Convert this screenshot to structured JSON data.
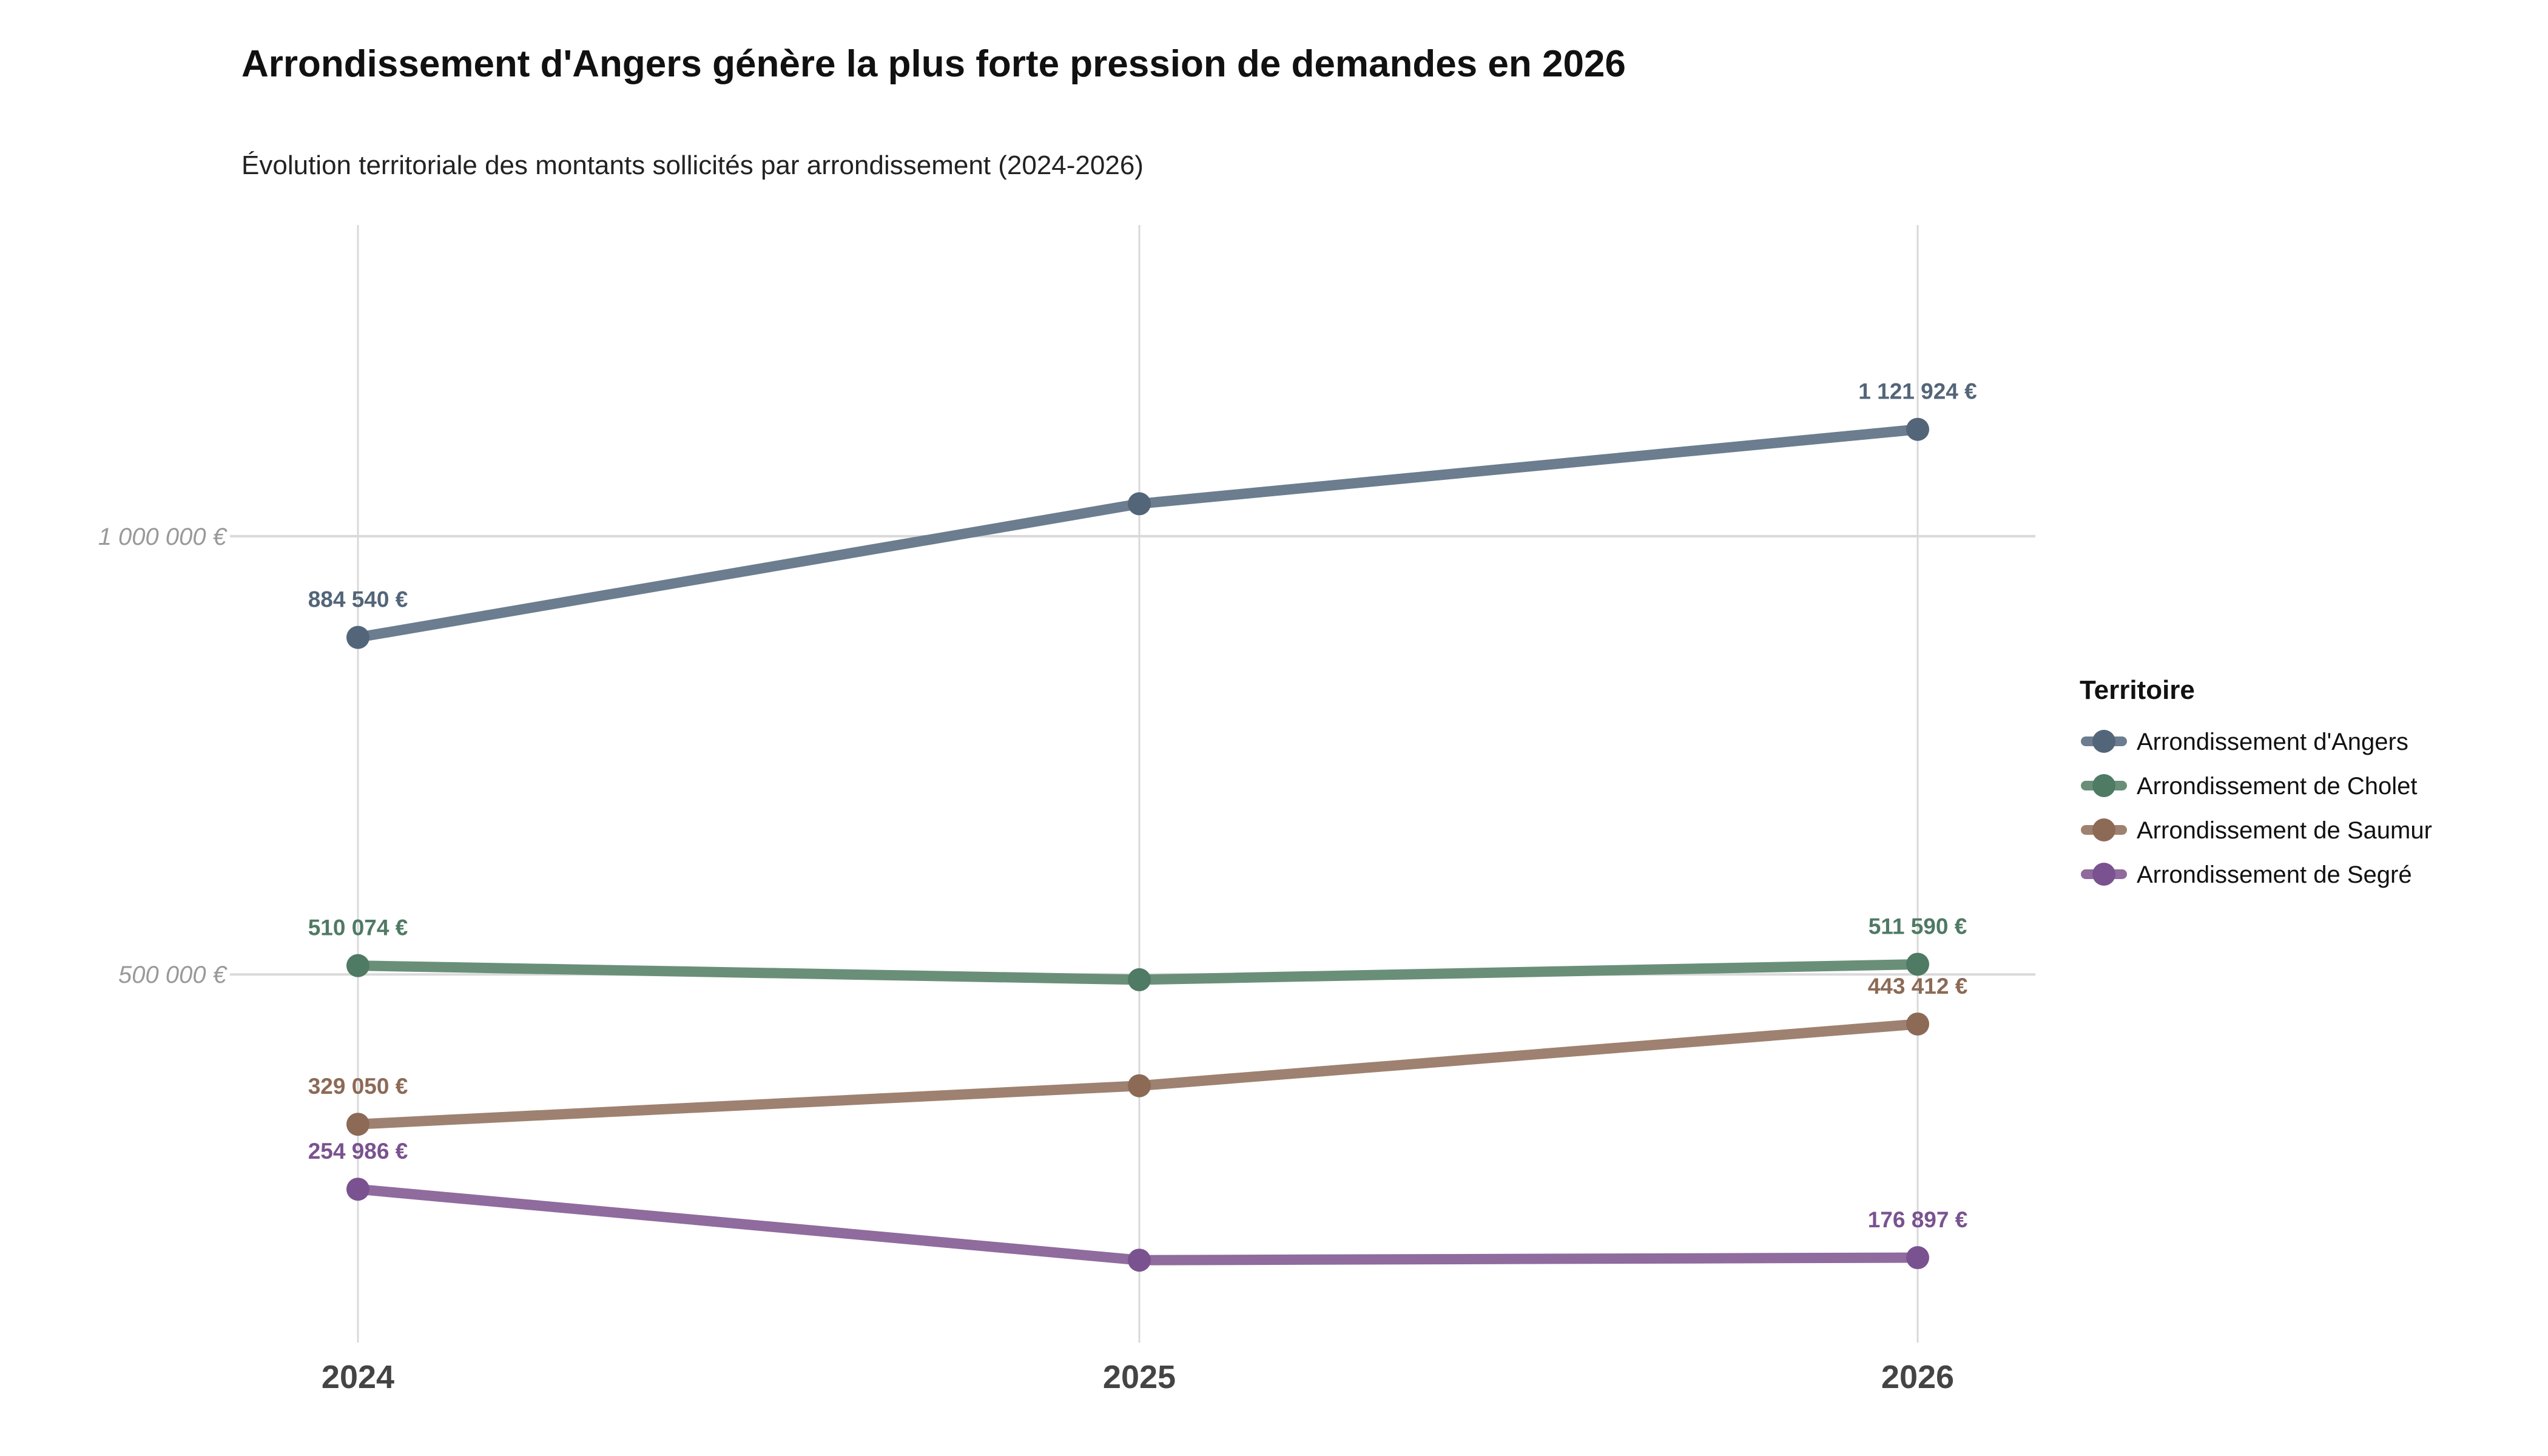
{
  "chart_data": {
    "type": "line",
    "title": "Arrondissement d'Angers génère la plus forte pression de demandes en 2026",
    "subtitle": "Évolution territoriale des montants sollicités par arrondissement (2024-2026)",
    "xlabel": "",
    "ylabel": "",
    "x": [
      "2024",
      "2025",
      "2026"
    ],
    "ylim": [
      80000,
      1355000
    ],
    "yticks": [
      500000,
      1000000
    ],
    "ytick_labels": [
      "500 000 €",
      "1 000 000 €"
    ],
    "grid": true,
    "legend": {
      "title": "Territoire",
      "placement": "right"
    },
    "series": [
      {
        "name": "Arrondissement d'Angers",
        "values": [
          884540,
          1037000,
          1121924
        ],
        "labels": [
          "884 540 €",
          "",
          "1 121 924 €"
        ],
        "color": "#536579",
        "line_color": "#6b7d8f"
      },
      {
        "name": "Arrondissement de Cholet",
        "values": [
          510074,
          494000,
          511590
        ],
        "labels": [
          "510 074 €",
          "",
          "511 590 €"
        ],
        "color": "#4f7a64",
        "line_color": "#6a8f79"
      },
      {
        "name": "Arrondissement de Saumur",
        "values": [
          329050,
          373000,
          443412
        ],
        "labels": [
          "329 050 €",
          "",
          "443 412 €"
        ],
        "color": "#8c6a56",
        "line_color": "#9e8170"
      },
      {
        "name": "Arrondissement de Segré",
        "values": [
          254986,
          174000,
          176897
        ],
        "labels": [
          "254 986 €",
          "",
          "176 897 €"
        ],
        "color": "#7a5290",
        "line_color": "#8f6b9e"
      }
    ]
  }
}
